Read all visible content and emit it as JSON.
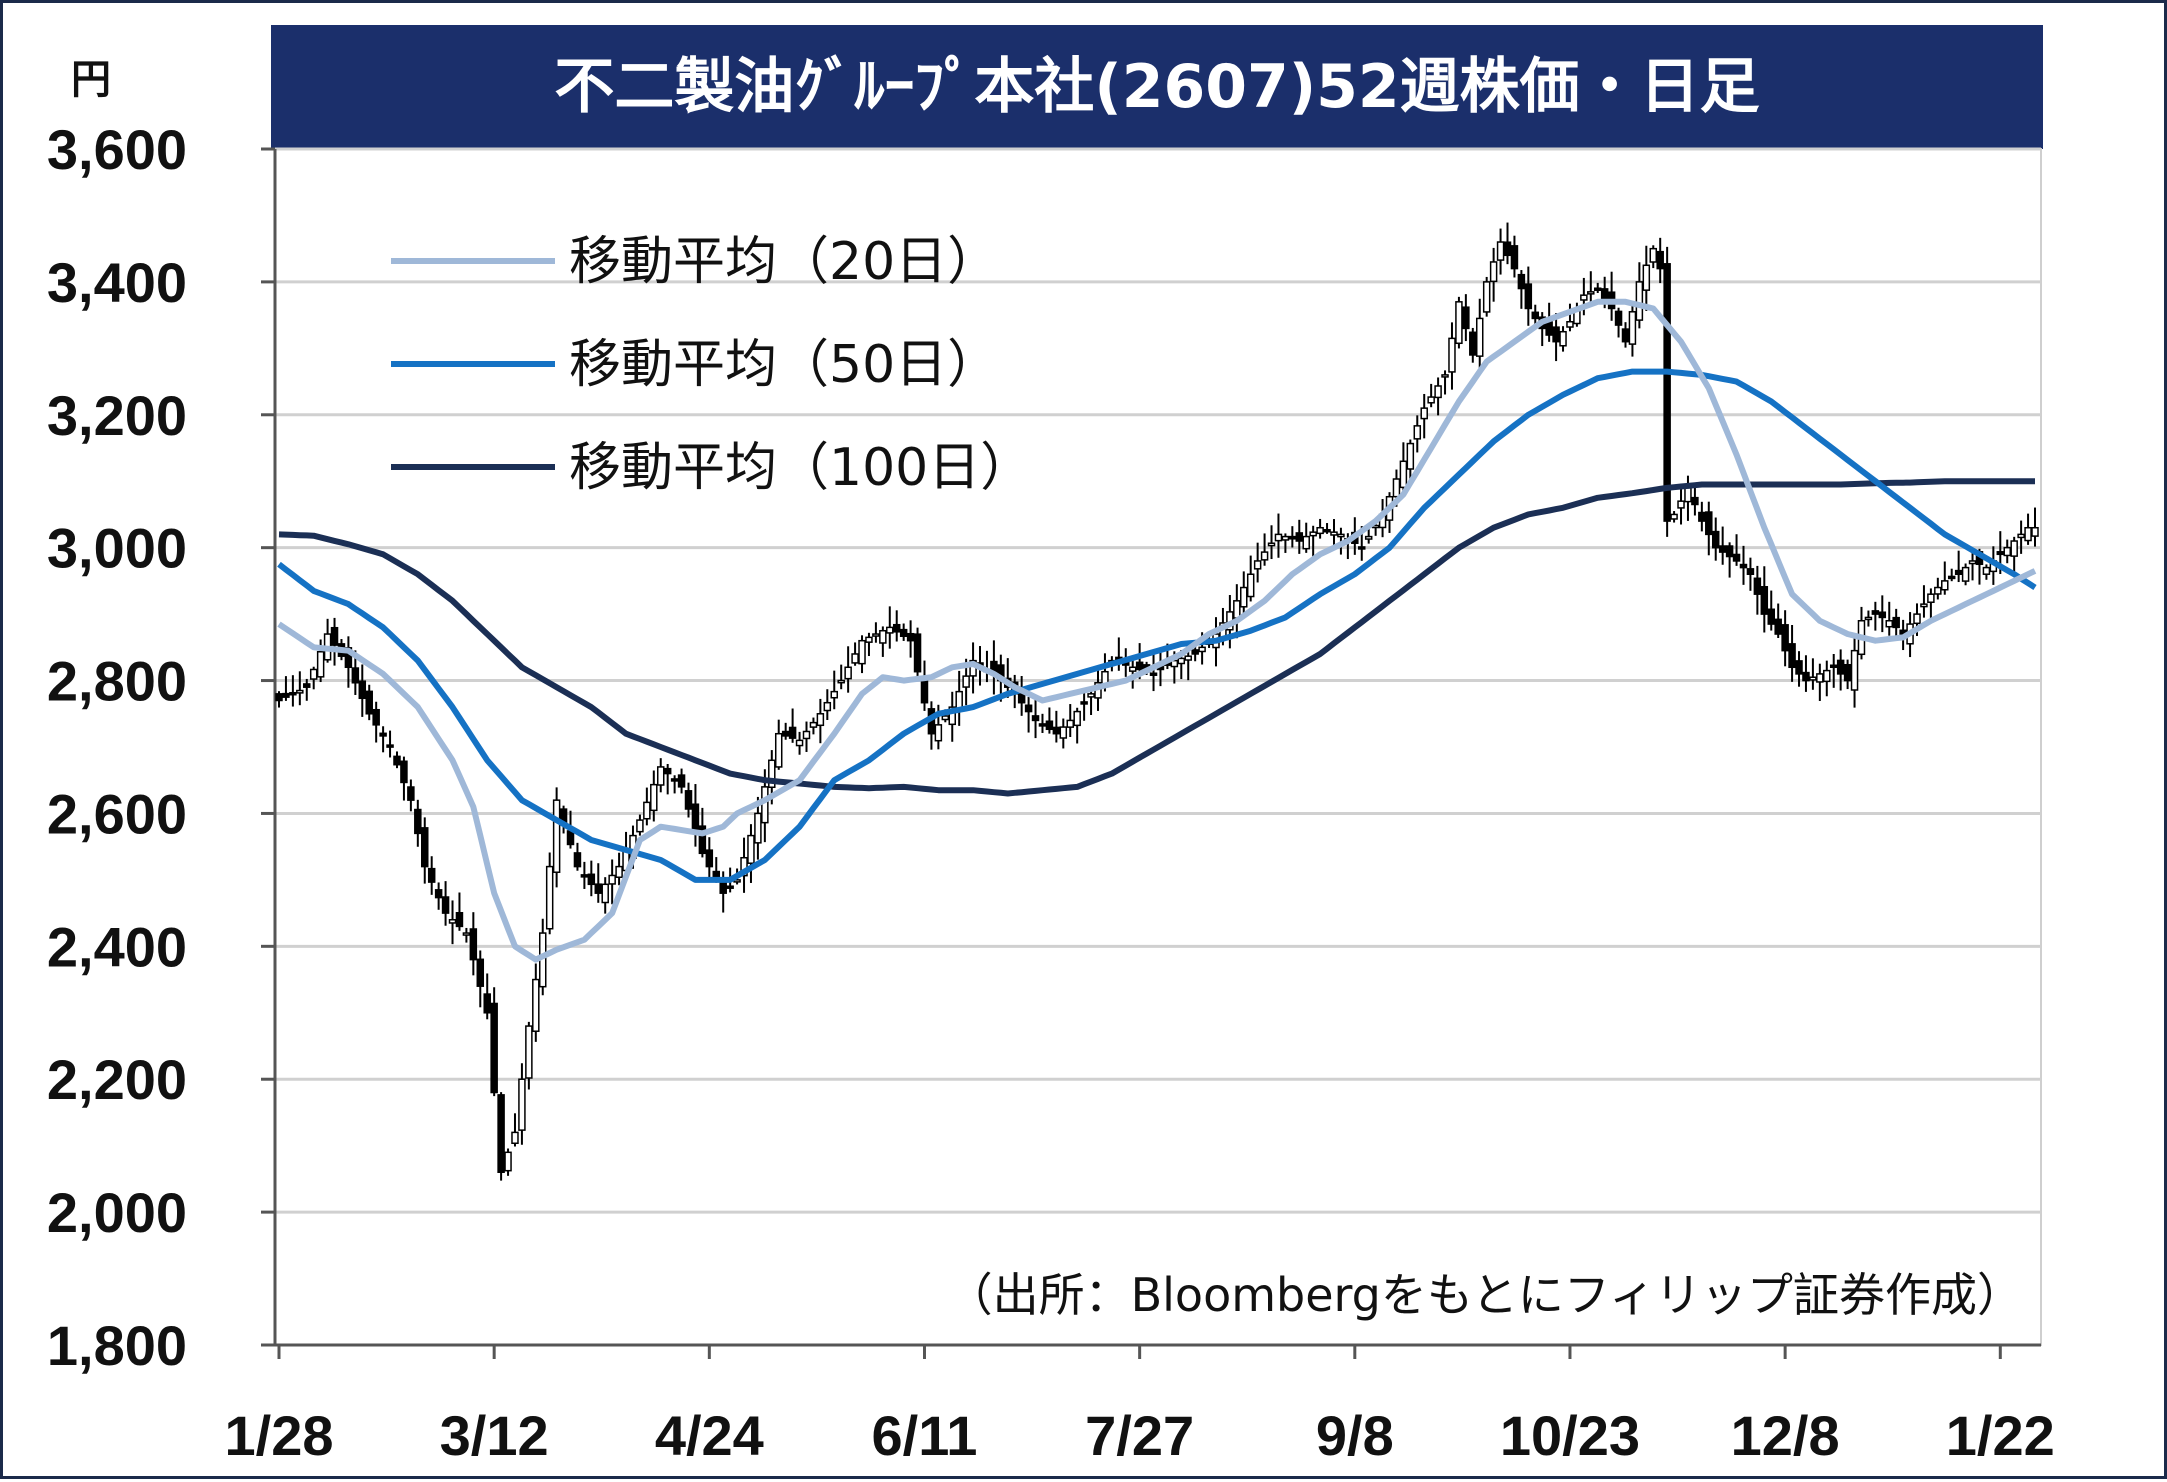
{
  "chart_data": {
    "type": "candlestick",
    "title": "不二製油ｸﾞﾙｰﾌﾟ本社(2607)52週株価・日足",
    "unit": "円",
    "source": "（出所：Bloombergをもとにフィリップ証券作成）",
    "ylim": [
      1800,
      3600
    ],
    "yticks": [
      "1,800",
      "2,000",
      "2,200",
      "2,400",
      "2,600",
      "2,800",
      "3,000",
      "3,200",
      "3,400",
      "3,600"
    ],
    "ytick_values": [
      1800,
      2000,
      2200,
      2400,
      2600,
      2800,
      3000,
      3200,
      3400,
      3600
    ],
    "xticks": [
      "1/28",
      "3/12",
      "4/24",
      "6/11",
      "7/27",
      "9/8",
      "10/23",
      "12/8",
      "1/22"
    ],
    "xtick_index": [
      0,
      31,
      62,
      93,
      124,
      155,
      186,
      217,
      248
    ],
    "grid": true,
    "legend_position": "top-left",
    "colors": {
      "ma20": "#9fb8d8",
      "ma50": "#1572c4",
      "ma100": "#1b2f55",
      "title_bg": "#1b2f6b",
      "candle": "#000000"
    },
    "series": [
      {
        "name": "移動平均（20日）",
        "key": "ma20"
      },
      {
        "name": "移動平均（50日）",
        "key": "ma50"
      },
      {
        "name": "移動平均（100日）",
        "key": "ma100"
      }
    ],
    "price_anchors": [
      [
        0,
        2770
      ],
      [
        4,
        2790
      ],
      [
        7,
        2870
      ],
      [
        10,
        2820
      ],
      [
        13,
        2750
      ],
      [
        16,
        2700
      ],
      [
        19,
        2620
      ],
      [
        21,
        2520
      ],
      [
        24,
        2450
      ],
      [
        27,
        2420
      ],
      [
        30,
        2300
      ],
      [
        32,
        2060
      ],
      [
        34,
        2120
      ],
      [
        36,
        2280
      ],
      [
        38,
        2420
      ],
      [
        40,
        2620
      ],
      [
        43,
        2520
      ],
      [
        46,
        2480
      ],
      [
        49,
        2520
      ],
      [
        52,
        2590
      ],
      [
        55,
        2670
      ],
      [
        58,
        2640
      ],
      [
        61,
        2540
      ],
      [
        64,
        2480
      ],
      [
        66,
        2500
      ],
      [
        69,
        2600
      ],
      [
        72,
        2720
      ],
      [
        75,
        2710
      ],
      [
        78,
        2750
      ],
      [
        81,
        2800
      ],
      [
        84,
        2860
      ],
      [
        88,
        2880
      ],
      [
        91,
        2860
      ],
      [
        94,
        2720
      ],
      [
        97,
        2760
      ],
      [
        100,
        2830
      ],
      [
        103,
        2810
      ],
      [
        106,
        2780
      ],
      [
        109,
        2740
      ],
      [
        112,
        2720
      ],
      [
        114,
        2740
      ],
      [
        117,
        2780
      ],
      [
        120,
        2830
      ],
      [
        123,
        2820
      ],
      [
        126,
        2810
      ],
      [
        129,
        2830
      ],
      [
        132,
        2840
      ],
      [
        135,
        2870
      ],
      [
        138,
        2920
      ],
      [
        141,
        2980
      ],
      [
        144,
        3020
      ],
      [
        147,
        3010
      ],
      [
        150,
        3030
      ],
      [
        153,
        3020
      ],
      [
        156,
        3000
      ],
      [
        159,
        3050
      ],
      [
        162,
        3130
      ],
      [
        165,
        3210
      ],
      [
        168,
        3260
      ],
      [
        170,
        3370
      ],
      [
        172,
        3290
      ],
      [
        174,
        3400
      ],
      [
        176,
        3460
      ],
      [
        178,
        3420
      ],
      [
        180,
        3360
      ],
      [
        182,
        3330
      ],
      [
        184,
        3310
      ],
      [
        186,
        3340
      ],
      [
        188,
        3380
      ],
      [
        190,
        3390
      ],
      [
        192,
        3360
      ],
      [
        194,
        3310
      ],
      [
        196,
        3400
      ],
      [
        198,
        3450
      ],
      [
        199,
        3420
      ],
      [
        200,
        3040
      ],
      [
        201,
        3050
      ],
      [
        203,
        3090
      ],
      [
        205,
        3040
      ],
      [
        207,
        3000
      ],
      [
        210,
        2980
      ],
      [
        212,
        2960
      ],
      [
        214,
        2900
      ],
      [
        216,
        2870
      ],
      [
        218,
        2820
      ],
      [
        220,
        2800
      ],
      [
        222,
        2810
      ],
      [
        224,
        2820
      ],
      [
        226,
        2800
      ],
      [
        228,
        2890
      ],
      [
        230,
        2900
      ],
      [
        232,
        2890
      ],
      [
        234,
        2870
      ],
      [
        236,
        2900
      ],
      [
        238,
        2930
      ],
      [
        240,
        2950
      ],
      [
        242,
        2960
      ],
      [
        244,
        2980
      ],
      [
        246,
        2970
      ],
      [
        248,
        2990
      ],
      [
        250,
        3010
      ],
      [
        252,
        3030
      ]
    ],
    "ma20_anchors": [
      [
        0,
        2885
      ],
      [
        5,
        2850
      ],
      [
        10,
        2845
      ],
      [
        15,
        2810
      ],
      [
        20,
        2760
      ],
      [
        25,
        2680
      ],
      [
        28,
        2610
      ],
      [
        31,
        2480
      ],
      [
        34,
        2400
      ],
      [
        37,
        2380
      ],
      [
        40,
        2395
      ],
      [
        44,
        2410
      ],
      [
        48,
        2450
      ],
      [
        52,
        2560
      ],
      [
        55,
        2580
      ],
      [
        58,
        2575
      ],
      [
        61,
        2570
      ],
      [
        64,
        2580
      ],
      [
        66,
        2600
      ],
      [
        70,
        2620
      ],
      [
        75,
        2650
      ],
      [
        80,
        2720
      ],
      [
        84,
        2780
      ],
      [
        87,
        2805
      ],
      [
        90,
        2800
      ],
      [
        94,
        2805
      ],
      [
        97,
        2820
      ],
      [
        100,
        2825
      ],
      [
        103,
        2810
      ],
      [
        106,
        2790
      ],
      [
        110,
        2770
      ],
      [
        114,
        2780
      ],
      [
        118,
        2790
      ],
      [
        122,
        2800
      ],
      [
        126,
        2820
      ],
      [
        130,
        2840
      ],
      [
        134,
        2870
      ],
      [
        138,
        2890
      ],
      [
        142,
        2920
      ],
      [
        146,
        2960
      ],
      [
        150,
        2990
      ],
      [
        154,
        3010
      ],
      [
        158,
        3040
      ],
      [
        162,
        3080
      ],
      [
        166,
        3150
      ],
      [
        170,
        3220
      ],
      [
        174,
        3280
      ],
      [
        178,
        3310
      ],
      [
        182,
        3340
      ],
      [
        186,
        3355
      ],
      [
        190,
        3370
      ],
      [
        194,
        3370
      ],
      [
        198,
        3360
      ],
      [
        202,
        3310
      ],
      [
        206,
        3240
      ],
      [
        210,
        3140
      ],
      [
        214,
        3030
      ],
      [
        218,
        2930
      ],
      [
        222,
        2890
      ],
      [
        226,
        2870
      ],
      [
        230,
        2860
      ],
      [
        234,
        2865
      ],
      [
        238,
        2890
      ],
      [
        242,
        2910
      ],
      [
        246,
        2930
      ],
      [
        250,
        2950
      ],
      [
        253,
        2965
      ]
    ],
    "ma50_anchors": [
      [
        0,
        2975
      ],
      [
        5,
        2935
      ],
      [
        10,
        2915
      ],
      [
        15,
        2880
      ],
      [
        20,
        2830
      ],
      [
        25,
        2760
      ],
      [
        30,
        2680
      ],
      [
        35,
        2620
      ],
      [
        40,
        2590
      ],
      [
        45,
        2560
      ],
      [
        50,
        2545
      ],
      [
        55,
        2530
      ],
      [
        60,
        2500
      ],
      [
        65,
        2500
      ],
      [
        70,
        2530
      ],
      [
        75,
        2580
      ],
      [
        80,
        2650
      ],
      [
        85,
        2680
      ],
      [
        90,
        2720
      ],
      [
        95,
        2750
      ],
      [
        100,
        2760
      ],
      [
        105,
        2780
      ],
      [
        110,
        2795
      ],
      [
        115,
        2810
      ],
      [
        120,
        2825
      ],
      [
        125,
        2840
      ],
      [
        130,
        2855
      ],
      [
        135,
        2860
      ],
      [
        140,
        2875
      ],
      [
        145,
        2895
      ],
      [
        150,
        2930
      ],
      [
        155,
        2960
      ],
      [
        160,
        3000
      ],
      [
        165,
        3060
      ],
      [
        170,
        3110
      ],
      [
        175,
        3160
      ],
      [
        180,
        3200
      ],
      [
        185,
        3230
      ],
      [
        190,
        3255
      ],
      [
        195,
        3265
      ],
      [
        200,
        3265
      ],
      [
        205,
        3260
      ],
      [
        210,
        3250
      ],
      [
        215,
        3220
      ],
      [
        220,
        3180
      ],
      [
        225,
        3140
      ],
      [
        230,
        3100
      ],
      [
        235,
        3060
      ],
      [
        240,
        3020
      ],
      [
        245,
        2990
      ],
      [
        250,
        2960
      ],
      [
        253,
        2940
      ]
    ],
    "ma100_anchors": [
      [
        0,
        3020
      ],
      [
        5,
        3018
      ],
      [
        10,
        3005
      ],
      [
        15,
        2990
      ],
      [
        20,
        2960
      ],
      [
        25,
        2920
      ],
      [
        30,
        2870
      ],
      [
        35,
        2820
      ],
      [
        40,
        2790
      ],
      [
        45,
        2760
      ],
      [
        50,
        2720
      ],
      [
        55,
        2700
      ],
      [
        60,
        2680
      ],
      [
        65,
        2660
      ],
      [
        70,
        2650
      ],
      [
        75,
        2645
      ],
      [
        80,
        2640
      ],
      [
        85,
        2638
      ],
      [
        90,
        2640
      ],
      [
        95,
        2635
      ],
      [
        100,
        2635
      ],
      [
        105,
        2630
      ],
      [
        110,
        2635
      ],
      [
        115,
        2640
      ],
      [
        120,
        2660
      ],
      [
        125,
        2690
      ],
      [
        130,
        2720
      ],
      [
        135,
        2750
      ],
      [
        140,
        2780
      ],
      [
        145,
        2810
      ],
      [
        150,
        2840
      ],
      [
        155,
        2880
      ],
      [
        160,
        2920
      ],
      [
        165,
        2960
      ],
      [
        170,
        3000
      ],
      [
        175,
        3030
      ],
      [
        180,
        3050
      ],
      [
        185,
        3060
      ],
      [
        190,
        3075
      ],
      [
        195,
        3082
      ],
      [
        200,
        3090
      ],
      [
        205,
        3095
      ],
      [
        210,
        3095
      ],
      [
        215,
        3095
      ],
      [
        220,
        3095
      ],
      [
        225,
        3095
      ],
      [
        230,
        3097
      ],
      [
        235,
        3098
      ],
      [
        240,
        3100
      ],
      [
        245,
        3100
      ],
      [
        250,
        3100
      ],
      [
        253,
        3100
      ]
    ]
  }
}
